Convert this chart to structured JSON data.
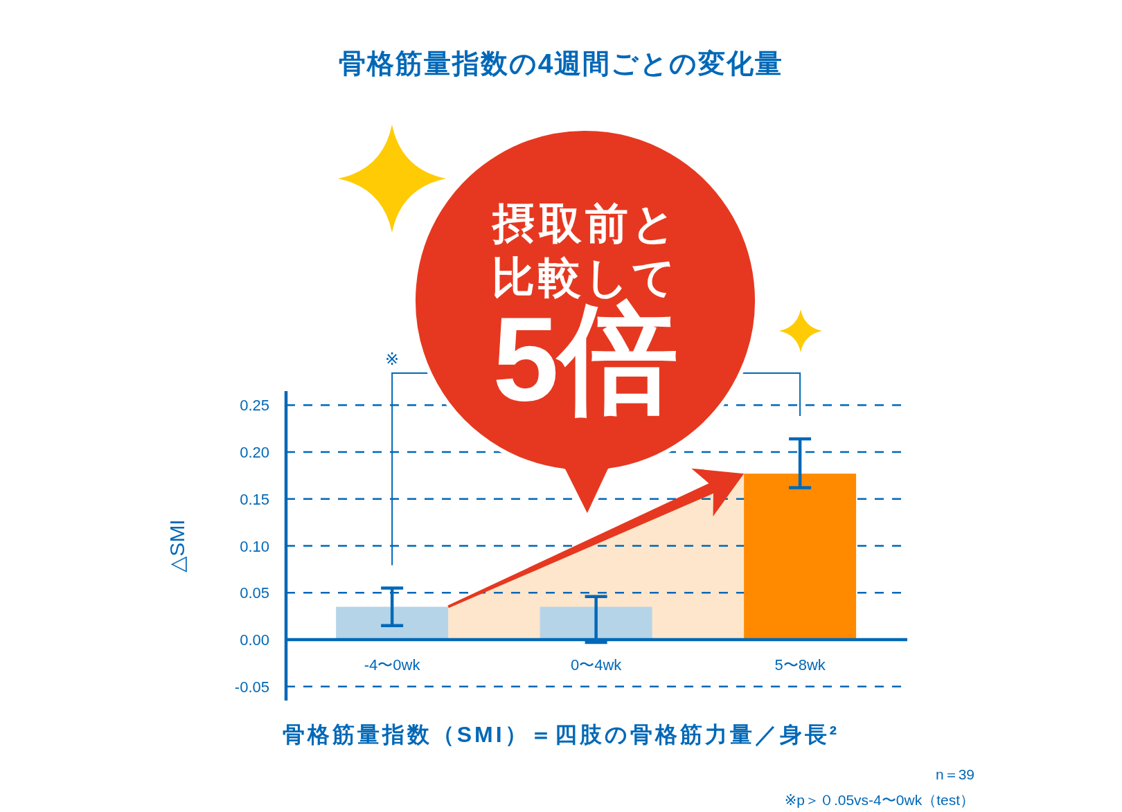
{
  "chart_data": {
    "type": "bar",
    "title": "骨格筋量指数の4週間ごとの変化量",
    "ylabel": "△SMI",
    "categories": [
      "-4〜0wk",
      "0〜4wk",
      "5〜8wk"
    ],
    "values": [
      0.035,
      0.035,
      0.177
    ],
    "colors": [
      "#b5d4e8",
      "#b5d4e8",
      "#ff8a00"
    ],
    "errors": [
      [
        0.015,
        0.055
      ],
      [
        -0.003,
        0.046
      ],
      [
        0.162,
        0.214
      ]
    ],
    "ylim": [
      -0.065,
      0.265
    ],
    "yticks": [
      -0.05,
      {
        "value": 0,
        "label": "0.00"
      },
      0.05,
      {
        "value": 0.1,
        "label": "0.10"
      },
      0.15,
      {
        "value": 0.2,
        "label": "0.20"
      },
      0.25
    ],
    "grid": "y",
    "annotations": [
      "摂取前と比較して",
      "5倍",
      "※",
      "骨格筋量指数（SMI）＝四肢の骨格筋力量／身長²",
      "n＝39",
      "※p＞０.05vs-4〜0wk（test）"
    ]
  }
}
